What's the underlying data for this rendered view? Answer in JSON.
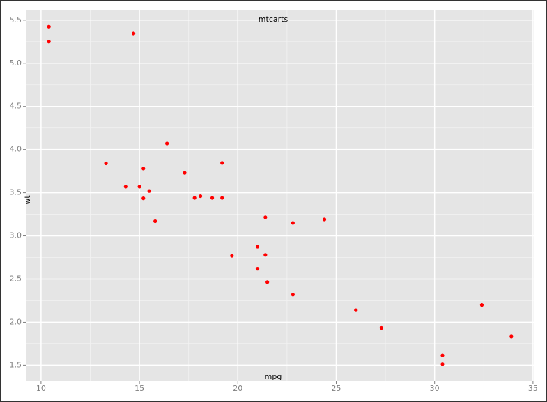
{
  "chart_data": {
    "type": "scatter",
    "title": "mtcarts",
    "x_label": "mpg",
    "y_label": "wt",
    "x": [
      21,
      21,
      22.8,
      21.4,
      18.7,
      18.1,
      14.3,
      24.4,
      22.8,
      19.2,
      17.8,
      16.4,
      17.3,
      15.2,
      10.4,
      10.4,
      14.7,
      32.4,
      30.4,
      33.9,
      21.5,
      15.5,
      15.2,
      13.3,
      19.2,
      27.3,
      26,
      30.4,
      15.8,
      19.7,
      15,
      21.4
    ],
    "values": [
      2.62,
      2.875,
      2.32,
      3.215,
      3.44,
      3.46,
      3.57,
      3.19,
      3.15,
      3.44,
      3.44,
      4.07,
      3.73,
      3.78,
      5.25,
      5.424,
      5.345,
      2.2,
      1.615,
      1.835,
      2.465,
      3.52,
      3.435,
      3.84,
      3.845,
      1.935,
      2.14,
      1.513,
      3.17,
      2.77,
      3.57,
      2.78
    ],
    "color": "#ff0000",
    "xlim": [
      9.225,
      35.075
    ],
    "ylim": [
      1.31745,
      5.61955
    ],
    "xticks": [
      10,
      15,
      20,
      25,
      30,
      35
    ],
    "yticks": [
      {
        "value": 1.5,
        "label": "1.5"
      },
      {
        "value": 2,
        "label": "2.0"
      },
      {
        "value": 2.5,
        "label": "2.5"
      },
      {
        "value": 3,
        "label": "3.0"
      },
      {
        "value": 3.5,
        "label": "3.5"
      },
      {
        "value": 4,
        "label": "4.0"
      },
      {
        "value": 4.5,
        "label": "4.5"
      },
      {
        "value": 5,
        "label": "5.0"
      },
      {
        "value": 5.5,
        "label": "5.5"
      }
    ],
    "grid": true
  }
}
